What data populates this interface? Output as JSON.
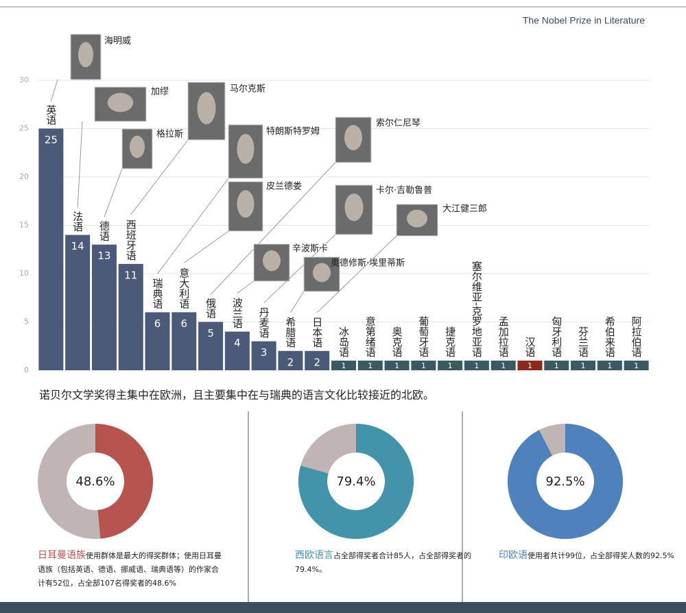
{
  "header": {
    "title": "The Nobel Prize in Literature"
  },
  "caption": "诺贝尔文学奖得主集中在欧洲，且主要集中在与瑞典的语言文化比较接近的北欧。",
  "chart_data": [
    {
      "type": "bar",
      "categories": [
        "英语",
        "法语",
        "德语",
        "西班牙语",
        "瑞典语",
        "意大利语",
        "俄语",
        "波兰语",
        "丹麦语",
        "希腊语",
        "日本语",
        "冰岛语",
        "意第绪语",
        "奥克语",
        "葡萄牙语",
        "捷克语",
        "塞尔维亚-克罗地亚语",
        "孟加拉语",
        "汉语",
        "匈牙利语",
        "芬兰语",
        "希伯来语",
        "阿拉伯语"
      ],
      "values": [
        25,
        14,
        13,
        11,
        6,
        6,
        5,
        4,
        3,
        2,
        2,
        1,
        1,
        1,
        1,
        1,
        1,
        1,
        1,
        1,
        1,
        1,
        1
      ],
      "colors": [
        "#4a5a78",
        "#4a5a78",
        "#4a5a78",
        "#4a5a78",
        "#4a5a78",
        "#4a5a78",
        "#4a5a78",
        "#4a5a78",
        "#4a5a78",
        "#4a5a78",
        "#4a5a78",
        "#3b5960",
        "#3b5960",
        "#3b5960",
        "#3b5960",
        "#3b5960",
        "#3b5960",
        "#3b5960",
        "#8b2a1c",
        "#3b5960",
        "#3b5960",
        "#3b5960",
        "#3b5960"
      ],
      "ylim": [
        0,
        30
      ],
      "yticks": [
        0,
        5,
        10,
        15,
        20,
        25,
        30
      ],
      "grid": true,
      "annotations": [
        "海明威",
        "加缪",
        "格拉斯",
        "马尔克斯",
        "特朗斯特罗姆",
        "皮兰德娄",
        "索尔仁尼琴",
        "辛波斯卡",
        "卡尔·吉勒鲁普",
        "奥德修斯·埃里蒂斯",
        "大江健三郎"
      ]
    },
    {
      "type": "donut",
      "value": 48.6,
      "value_label": "48.6%",
      "color": "#b85450",
      "highlight": "日耳曼语族",
      "text": "使用群体是最大的得奖群体；使用日耳曼语族（包括英语、德语、挪威语、瑞典语等）的作家合计有52位，占全部107名得奖者的48.6%"
    },
    {
      "type": "donut",
      "value": 79.4,
      "value_label": "79.4%",
      "color": "#4393ab",
      "highlight": "西欧语言",
      "text": "占全部得奖者合计85人，占全部得奖者的79.4%。"
    },
    {
      "type": "donut",
      "value": 92.5,
      "value_label": "92.5%",
      "color": "#4f81bd",
      "highlight": "印欧语",
      "text": "使用者共计99位，占全部得奖人数的92.5%"
    }
  ]
}
